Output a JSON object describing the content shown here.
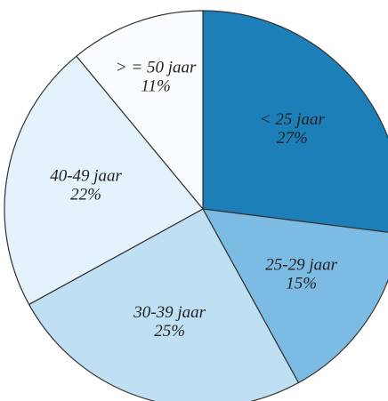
{
  "chart_data": {
    "type": "pie",
    "categories": [
      "< 25 jaar",
      "25-29 jaar",
      "30-39 jaar",
      "40-49 jaar",
      "> = 50 jaar"
    ],
    "values": [
      27,
      15,
      25,
      22,
      11
    ],
    "value_labels": [
      "27%",
      "15%",
      "25%",
      "22%",
      "11%"
    ],
    "colors": [
      "#1c7fb8",
      "#7cbbe3",
      "#bfe0f3",
      "#e4f2fb",
      "#f9fcfe"
    ]
  }
}
